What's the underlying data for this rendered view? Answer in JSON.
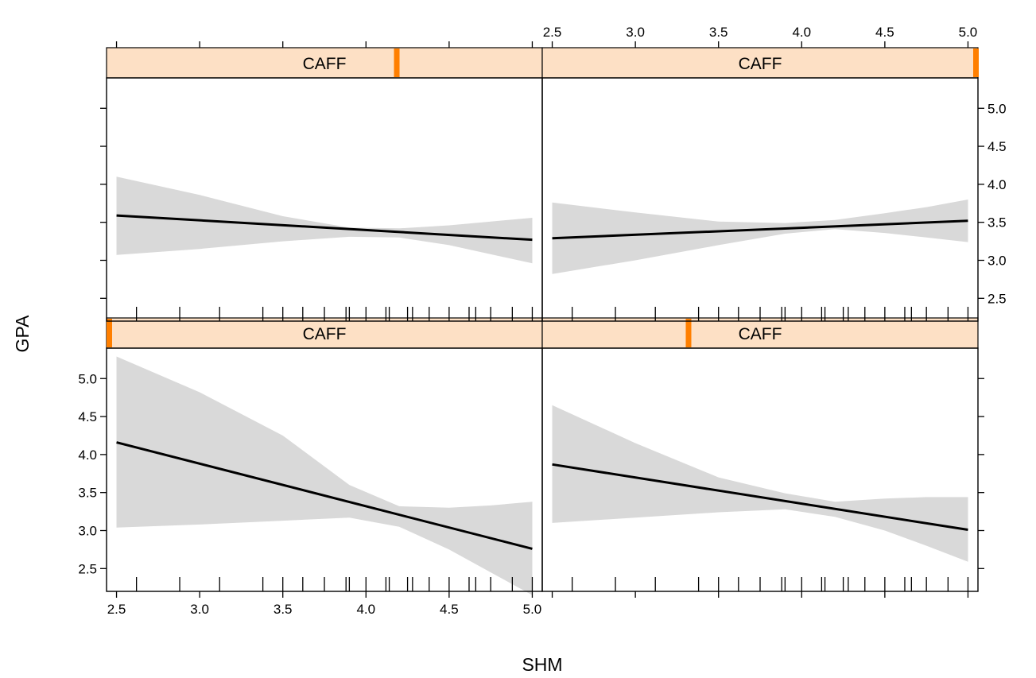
{
  "chart_data": {
    "type": "line",
    "layout": "2x2 trellis (coplot)",
    "xlabel": "SHM",
    "ylabel": "GPA",
    "xlim": [
      2.44,
      5.06
    ],
    "ylim": [
      2.2,
      5.4
    ],
    "x_ticks": [
      2.5,
      3.0,
      3.5,
      4.0,
      4.5,
      5.0
    ],
    "x_tick_labels": [
      "2.5",
      "3.0",
      "3.5",
      "4.0",
      "4.5",
      "5.0"
    ],
    "y_ticks": [
      2.5,
      3.0,
      3.5,
      4.0,
      4.5,
      5.0
    ],
    "y_tick_labels": [
      "2.5",
      "3.0",
      "3.5",
      "4.0",
      "4.5",
      "5.0"
    ],
    "rug_x": [
      2.62,
      2.88,
      3.12,
      3.38,
      3.5,
      3.62,
      3.75,
      3.88,
      3.9,
      4.0,
      4.12,
      4.14,
      4.25,
      4.28,
      4.38,
      4.5,
      4.62,
      4.66,
      4.75,
      4.88,
      5.0
    ],
    "conditioning_variable": "CAFF",
    "conditioning_range": [
      0,
      1
    ],
    "colors": {
      "band": "#d9d9d9",
      "line": "#000000",
      "strip": "#fde0c5",
      "strip_marker": "#ff7f00"
    },
    "panels": [
      {
        "id": "bottom-left",
        "strip_label": "CAFF",
        "caff_level": 0.0,
        "x": [
          2.5,
          5.0
        ],
        "fit": [
          4.16,
          2.76
        ],
        "band_x": [
          2.5,
          3.0,
          3.5,
          3.9,
          4.2,
          4.5,
          4.75,
          5.0
        ],
        "band_lower": [
          3.04,
          3.08,
          3.13,
          3.17,
          3.05,
          2.75,
          2.45,
          2.15
        ],
        "band_upper": [
          5.29,
          4.82,
          4.25,
          3.6,
          3.32,
          3.3,
          3.33,
          3.38
        ]
      },
      {
        "id": "bottom-right",
        "strip_label": "CAFF",
        "caff_level": 0.333,
        "x": [
          2.5,
          5.0
        ],
        "fit": [
          3.87,
          3.01
        ],
        "band_x": [
          2.5,
          3.0,
          3.5,
          3.9,
          4.2,
          4.5,
          4.75,
          5.0
        ],
        "band_lower": [
          3.1,
          3.17,
          3.24,
          3.28,
          3.18,
          3.0,
          2.8,
          2.59
        ],
        "band_upper": [
          4.65,
          4.15,
          3.7,
          3.49,
          3.38,
          3.42,
          3.44,
          3.44
        ]
      },
      {
        "id": "top-left",
        "strip_label": "CAFF",
        "caff_level": 0.667,
        "x": [
          2.5,
          5.0
        ],
        "fit": [
          3.59,
          3.27
        ],
        "band_x": [
          2.5,
          3.0,
          3.5,
          3.9,
          4.2,
          4.5,
          4.75,
          5.0
        ],
        "band_lower": [
          3.07,
          3.15,
          3.25,
          3.31,
          3.3,
          3.2,
          3.08,
          2.96
        ],
        "band_upper": [
          4.1,
          3.86,
          3.58,
          3.43,
          3.42,
          3.46,
          3.51,
          3.56
        ]
      },
      {
        "id": "top-right",
        "strip_label": "CAFF",
        "caff_level": 1.0,
        "x": [
          2.5,
          5.0
        ],
        "fit": [
          3.29,
          3.52
        ],
        "band_x": [
          2.5,
          3.0,
          3.5,
          3.9,
          4.2,
          4.5,
          4.75,
          5.0
        ],
        "band_lower": [
          2.82,
          3.0,
          3.2,
          3.35,
          3.41,
          3.36,
          3.3,
          3.24
        ],
        "band_upper": [
          3.76,
          3.63,
          3.51,
          3.49,
          3.53,
          3.62,
          3.7,
          3.8
        ]
      }
    ]
  }
}
